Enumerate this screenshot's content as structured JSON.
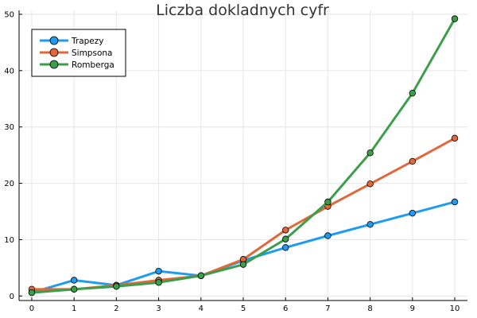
{
  "chart_data": {
    "type": "line",
    "title": "Liczba dokladnych cyfr",
    "xlabel": "",
    "ylabel": "",
    "x": [
      0,
      1,
      2,
      3,
      4,
      5,
      6,
      7,
      8,
      9,
      10
    ],
    "xlim": [
      -0.3,
      10.3
    ],
    "ylim": [
      -0.8,
      50.7
    ],
    "xticks": [
      0,
      1,
      2,
      3,
      4,
      5,
      6,
      7,
      8,
      9,
      10
    ],
    "yticks": [
      0,
      10,
      20,
      30,
      40,
      50
    ],
    "grid": true,
    "legend_position": "top-left",
    "series": [
      {
        "name": "Trapezy",
        "color": "#1f9bef",
        "values": [
          0.6,
          2.8,
          1.9,
          4.4,
          3.6,
          6.3,
          8.6,
          10.7,
          12.7,
          14.7,
          16.7
        ]
      },
      {
        "name": "Simpsona",
        "color": "#e0683a",
        "values": [
          1.2,
          1.2,
          1.9,
          2.8,
          3.6,
          6.5,
          11.7,
          15.9,
          19.9,
          23.9,
          28.0
        ]
      },
      {
        "name": "Romberga",
        "color": "#3a9e4a",
        "values": [
          0.6,
          1.2,
          1.7,
          2.4,
          3.6,
          5.6,
          10.1,
          16.7,
          25.4,
          36.0,
          49.2
        ]
      }
    ]
  }
}
